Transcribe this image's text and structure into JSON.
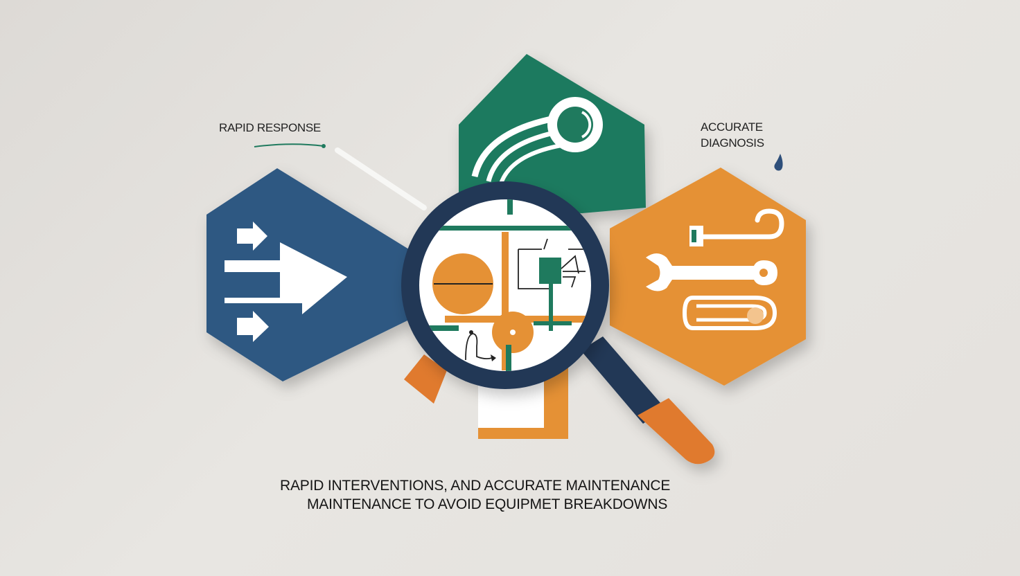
{
  "labels": {
    "rapid_response": "RAPID RESPONSE",
    "accurate_line1": "ACCURATE",
    "accurate_line2": "DIAGNOSIS"
  },
  "caption": {
    "line1": "RAPID INTERVENTIONS, AND ACCURATE MAINTENANCE",
    "line2": "MAINTENANCE TO AVOID EQUIPMET BREAKDOWNS"
  },
  "colors": {
    "background": "#e3e0dc",
    "blue": "#2e5882",
    "green": "#1f7a5e",
    "orange": "#e59135",
    "navy": "#223856",
    "white": "#ffffff"
  },
  "icons": {
    "left_hexagon": "arrows-icon",
    "top_hexagon": "gauge-hook-icon",
    "right_hexagon": "wrench-tools-icon",
    "center": "magnifier-circuit-icon"
  }
}
